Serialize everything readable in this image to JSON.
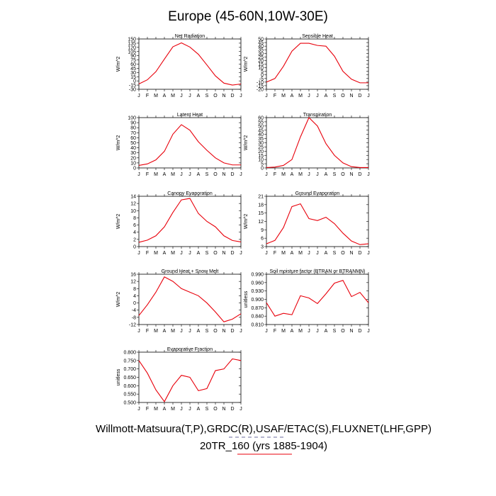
{
  "figure": {
    "title": "Europe (45-60N,10W-30E)",
    "footer_sources": "Willmott-Matsuura(T,P),GRDC(R),USAF/ETAC(S),FLUXNET(LHF,GPP)",
    "footer_model": "20TR_160 (yrs 1885-1904)",
    "colors": {
      "series": "#e8000b",
      "axes": "#000000",
      "legend_dash": "#6b6b9e"
    }
  },
  "chart_data": [
    {
      "id": "net-radiation",
      "type": "line",
      "title": "Net Radiation",
      "ylabel": "W/m^2",
      "categories": [
        "J",
        "F",
        "M",
        "A",
        "M",
        "J",
        "J",
        "A",
        "S",
        "O",
        "N",
        "D",
        "J"
      ],
      "ylim": [
        -30,
        150
      ],
      "yticks": [
        -30,
        -15,
        0,
        15,
        30,
        45,
        60,
        75,
        90,
        105,
        120,
        135,
        150
      ],
      "ytick_labels": [
        "-30",
        "-15",
        "0",
        "15",
        "30",
        "45",
        "60",
        "75",
        "90",
        "105",
        "120",
        "135",
        "150"
      ],
      "series": [
        {
          "name": "20TR_160",
          "values": [
            -11,
            4,
            33,
            78,
            122,
            136,
            121,
            95,
            57,
            18,
            -8,
            -15,
            -11
          ]
        }
      ]
    },
    {
      "id": "sensible-heat",
      "type": "line",
      "title": "Sensible Heat",
      "ylabel": "W/m^2",
      "categories": [
        "J",
        "F",
        "M",
        "A",
        "M",
        "J",
        "J",
        "A",
        "S",
        "O",
        "N",
        "D",
        "J"
      ],
      "ylim": [
        -20,
        50
      ],
      "yticks": [
        -20,
        -15,
        -10,
        -5,
        0,
        5,
        10,
        15,
        20,
        25,
        30,
        35,
        40,
        45,
        50
      ],
      "ytick_labels": [
        "-20",
        "-15",
        "-10",
        "-5",
        "0",
        "5",
        "10",
        "15",
        "20",
        "25",
        "30",
        "35",
        "40",
        "45",
        "50"
      ],
      "series": [
        {
          "name": "20TR_160",
          "values": [
            -10,
            -5,
            12,
            33,
            44,
            44,
            41,
            40,
            26,
            5,
            -6,
            -11,
            -11
          ]
        }
      ]
    },
    {
      "id": "latent-heat",
      "type": "line",
      "title": "Latent Heat",
      "ylabel": "W/m^2",
      "categories": [
        "J",
        "F",
        "M",
        "A",
        "M",
        "J",
        "J",
        "A",
        "S",
        "O",
        "N",
        "D",
        "J"
      ],
      "ylim": [
        0,
        100
      ],
      "yticks": [
        0,
        10,
        20,
        30,
        40,
        50,
        60,
        70,
        80,
        90,
        100
      ],
      "ytick_labels": [
        "0",
        "10",
        "20",
        "30",
        "40",
        "50",
        "60",
        "70",
        "80",
        "90",
        "100"
      ],
      "series": [
        {
          "name": "20TR_160",
          "values": [
            5,
            8,
            16,
            33,
            67,
            86,
            75,
            52,
            35,
            20,
            10,
            6,
            6
          ]
        }
      ]
    },
    {
      "id": "transpiration",
      "type": "line",
      "title": "Transpiration",
      "ylabel": "W/m^2",
      "categories": [
        "J",
        "F",
        "M",
        "A",
        "M",
        "J",
        "J",
        "A",
        "S",
        "O",
        "N",
        "D",
        "J"
      ],
      "ylim": [
        0,
        60
      ],
      "yticks": [
        0,
        5,
        10,
        15,
        20,
        25,
        30,
        35,
        40,
        45,
        50,
        55,
        60
      ],
      "ytick_labels": [
        "0",
        "5",
        "10",
        "15",
        "20",
        "25",
        "30",
        "35",
        "40",
        "45",
        "50",
        "55",
        "60"
      ],
      "series": [
        {
          "name": "20TR_160",
          "values": [
            0.5,
            1,
            3,
            10,
            37,
            60,
            50,
            29,
            15,
            6,
            1.5,
            0.5,
            0.5
          ]
        }
      ]
    },
    {
      "id": "canopy-evaporation",
      "type": "line",
      "title": "Canopy Evaporation",
      "ylabel": "W/m^2",
      "categories": [
        "J",
        "F",
        "M",
        "A",
        "M",
        "J",
        "J",
        "A",
        "S",
        "O",
        "N",
        "D",
        "J"
      ],
      "ylim": [
        0,
        14
      ],
      "yticks": [
        0,
        2,
        4,
        6,
        8,
        10,
        12,
        14
      ],
      "ytick_labels": [
        "0",
        "2",
        "4",
        "6",
        "8",
        "10",
        "12",
        "14"
      ],
      "series": [
        {
          "name": "20TR_160",
          "values": [
            1.2,
            1.8,
            3,
            5.5,
            9.5,
            13,
            13.4,
            9.2,
            7,
            5.5,
            3,
            1.7,
            1.3
          ]
        }
      ]
    },
    {
      "id": "ground-evaporation",
      "type": "line",
      "title": "Ground Evaporation",
      "ylabel": "W/m^2",
      "categories": [
        "J",
        "F",
        "M",
        "A",
        "M",
        "J",
        "J",
        "A",
        "S",
        "O",
        "N",
        "D",
        "J"
      ],
      "ylim": [
        3,
        21
      ],
      "yticks": [
        3,
        6,
        9,
        12,
        15,
        18,
        21
      ],
      "ytick_labels": [
        "3",
        "6",
        "9",
        "12",
        "15",
        "18",
        "21"
      ],
      "series": [
        {
          "name": "20TR_160",
          "values": [
            4,
            5.2,
            9.8,
            17.3,
            18.3,
            13,
            12.3,
            13.5,
            11.2,
            7.8,
            5,
            3.7,
            4
          ]
        }
      ]
    },
    {
      "id": "ground-heat-snow-melt",
      "type": "line",
      "title": "Ground Heat + Snow Melt",
      "ylabel": "W/m^2",
      "categories": [
        "J",
        "F",
        "M",
        "A",
        "M",
        "J",
        "J",
        "A",
        "S",
        "O",
        "N",
        "D",
        "J"
      ],
      "ylim": [
        -12,
        16
      ],
      "yticks": [
        -12,
        -8,
        -4,
        0,
        4,
        8,
        12,
        16
      ],
      "ytick_labels": [
        "-12",
        "-8",
        "-4",
        "0",
        "4",
        "8",
        "12",
        "16"
      ],
      "series": [
        {
          "name": "20TR_160",
          "values": [
            -7,
            -1,
            6,
            14.5,
            12,
            8,
            6,
            4,
            0,
            -5,
            -10.5,
            -9,
            -6
          ]
        }
      ]
    },
    {
      "id": "soil-moisture-factor",
      "type": "line",
      "title": "Soil moisture factor (BTRAN or BTRANMN)",
      "ylabel": "unitless",
      "categories": [
        "J",
        "F",
        "M",
        "A",
        "M",
        "J",
        "J",
        "A",
        "S",
        "O",
        "N",
        "D",
        "J"
      ],
      "ylim": [
        0.81,
        0.99
      ],
      "yticks": [
        0.81,
        0.84,
        0.87,
        0.9,
        0.93,
        0.96,
        0.99
      ],
      "ytick_labels": [
        "0.810",
        "0.840",
        "0.870",
        "0.900",
        "0.930",
        "0.960",
        "0.990"
      ],
      "series": [
        {
          "name": "20TR_160",
          "values": [
            0.888,
            0.84,
            0.85,
            0.845,
            0.913,
            0.905,
            0.885,
            0.92,
            0.958,
            0.968,
            0.91,
            0.925,
            0.888
          ]
        }
      ]
    },
    {
      "id": "evaporative-fraction",
      "type": "line",
      "title": "Evaporative Fraction",
      "ylabel": "unitless",
      "categories": [
        "J",
        "F",
        "M",
        "A",
        "M",
        "J",
        "J",
        "A",
        "S",
        "O",
        "N",
        "D",
        "J"
      ],
      "ylim": [
        0.5,
        0.8
      ],
      "yticks": [
        0.5,
        0.55,
        0.6,
        0.65,
        0.7,
        0.75,
        0.8
      ],
      "ytick_labels": [
        "0.500",
        "0.550",
        "0.600",
        "0.650",
        "0.700",
        "0.750",
        "0.800"
      ],
      "series": [
        {
          "name": "20TR_160",
          "values": [
            0.75,
            0.675,
            0.575,
            0.505,
            0.6,
            0.662,
            0.65,
            0.57,
            0.583,
            0.69,
            0.7,
            0.76,
            0.75
          ]
        }
      ]
    }
  ]
}
